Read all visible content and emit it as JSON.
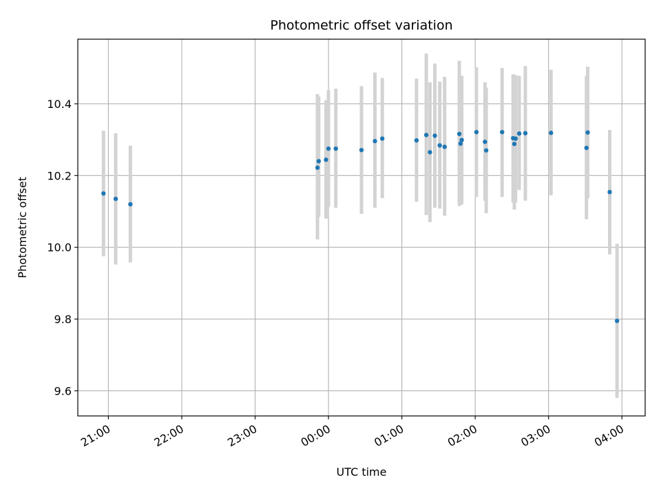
{
  "chart_data": {
    "type": "scatter",
    "title": "Photometric offset variation",
    "xlabel": "UTC time",
    "ylabel": "Photometric offset",
    "grid": true,
    "legend": "none",
    "xlim": [
      "20:35",
      "04:19"
    ],
    "ylim": [
      9.53,
      10.58
    ],
    "x_ticks": [
      "21:00",
      "22:00",
      "23:00",
      "00:00",
      "01:00",
      "02:00",
      "03:00",
      "04:00"
    ],
    "y_ticks": [
      9.6,
      9.8,
      10.0,
      10.2,
      10.4
    ],
    "y_tick_labels": [
      "9.6",
      "9.8",
      "10.0",
      "10.2",
      "10.4"
    ],
    "colors": {
      "point": "#1f77b4",
      "errorbar": "#d3d3d3",
      "grid": "#b0b0b0"
    },
    "series": [
      {
        "points": [
          {
            "x": "20:56",
            "y": 10.15,
            "ylow": 9.975,
            "yhigh": 10.325
          },
          {
            "x": "21:06",
            "y": 10.135,
            "ylow": 9.952,
            "yhigh": 10.318
          },
          {
            "x": "21:18",
            "y": 10.12,
            "ylow": 9.958,
            "yhigh": 10.283
          },
          {
            "x": "23:51",
            "y": 10.222,
            "ylow": 10.022,
            "yhigh": 10.427
          },
          {
            "x": "23:52",
            "y": 10.24,
            "ylow": 10.085,
            "yhigh": 10.42
          },
          {
            "x": "23:58",
            "y": 10.244,
            "ylow": 10.08,
            "yhigh": 10.41
          },
          {
            "x": "00:00",
            "y": 10.275,
            "ylow": 10.113,
            "yhigh": 10.438
          },
          {
            "x": "00:06",
            "y": 10.275,
            "ylow": 10.11,
            "yhigh": 10.442
          },
          {
            "x": "00:27",
            "y": 10.271,
            "ylow": 10.093,
            "yhigh": 10.449
          },
          {
            "x": "00:38",
            "y": 10.296,
            "ylow": 10.11,
            "yhigh": 10.487
          },
          {
            "x": "00:44",
            "y": 10.303,
            "ylow": 10.137,
            "yhigh": 10.472
          },
          {
            "x": "01:12",
            "y": 10.298,
            "ylow": 10.127,
            "yhigh": 10.47
          },
          {
            "x": "01:20",
            "y": 10.313,
            "ylow": 10.09,
            "yhigh": 10.54
          },
          {
            "x": "01:23",
            "y": 10.265,
            "ylow": 10.07,
            "yhigh": 10.46
          },
          {
            "x": "01:27",
            "y": 10.311,
            "ylow": 10.11,
            "yhigh": 10.512
          },
          {
            "x": "01:31",
            "y": 10.284,
            "ylow": 10.108,
            "yhigh": 10.462
          },
          {
            "x": "01:35",
            "y": 10.28,
            "ylow": 10.088,
            "yhigh": 10.475
          },
          {
            "x": "01:47",
            "y": 10.316,
            "ylow": 10.115,
            "yhigh": 10.52
          },
          {
            "x": "01:48",
            "y": 10.289,
            "ylow": 10.118,
            "yhigh": 10.46
          },
          {
            "x": "01:49",
            "y": 10.299,
            "ylow": 10.12,
            "yhigh": 10.478
          },
          {
            "x": "02:01",
            "y": 10.321,
            "ylow": 10.14,
            "yhigh": 10.502
          },
          {
            "x": "02:08",
            "y": 10.294,
            "ylow": 10.13,
            "yhigh": 10.46
          },
          {
            "x": "02:09",
            "y": 10.27,
            "ylow": 10.095,
            "yhigh": 10.445
          },
          {
            "x": "02:22",
            "y": 10.321,
            "ylow": 10.14,
            "yhigh": 10.5
          },
          {
            "x": "02:31",
            "y": 10.304,
            "ylow": 10.125,
            "yhigh": 10.482
          },
          {
            "x": "02:32",
            "y": 10.288,
            "ylow": 10.105,
            "yhigh": 10.47
          },
          {
            "x": "02:33",
            "y": 10.303,
            "ylow": 10.125,
            "yhigh": 10.48
          },
          {
            "x": "02:36",
            "y": 10.317,
            "ylow": 10.16,
            "yhigh": 10.478
          },
          {
            "x": "02:41",
            "y": 10.318,
            "ylow": 10.13,
            "yhigh": 10.505
          },
          {
            "x": "03:02",
            "y": 10.319,
            "ylow": 10.145,
            "yhigh": 10.495
          },
          {
            "x": "03:31",
            "y": 10.277,
            "ylow": 10.078,
            "yhigh": 10.478
          },
          {
            "x": "03:32",
            "y": 10.32,
            "ylow": 10.137,
            "yhigh": 10.503
          },
          {
            "x": "03:50",
            "y": 10.154,
            "ylow": 9.98,
            "yhigh": 10.327
          },
          {
            "x": "03:56",
            "y": 9.795,
            "ylow": 9.58,
            "yhigh": 10.01
          }
        ]
      }
    ]
  }
}
